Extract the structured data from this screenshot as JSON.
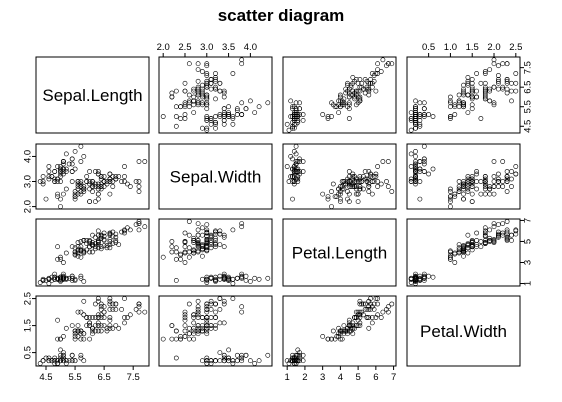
{
  "chart_data": {
    "type": "scatter",
    "title": "scatter diagram",
    "variables": [
      "Sepal.Length",
      "Sepal.Width",
      "Petal.Length",
      "Petal.Width"
    ],
    "ranges": {
      "Sepal.Length": [
        4.3,
        7.9
      ],
      "Sepal.Width": [
        2.0,
        4.4
      ],
      "Petal.Length": [
        1.0,
        6.9
      ],
      "Petal.Width": [
        0.1,
        2.5
      ]
    },
    "ticks": {
      "Sepal.Length": {
        "values": [
          4.5,
          5.5,
          6.5,
          7.5
        ],
        "labels": [
          "4.5",
          "5.5",
          "6.5",
          "7.5"
        ]
      },
      "Sepal.Width": {
        "values": [
          2.0,
          2.5,
          3.0,
          3.5,
          4.0
        ],
        "labels": [
          "2.0",
          "2.5",
          "3.0",
          "3.5",
          "4.0"
        ]
      },
      "Petal.Length": {
        "values": [
          1,
          2,
          3,
          4,
          5,
          6,
          7
        ],
        "labels": [
          "1",
          "2",
          "3",
          "4",
          "5",
          "6",
          "7"
        ]
      },
      "Petal.Width": {
        "values": [
          0.5,
          1.0,
          1.5,
          2.0,
          2.5
        ],
        "labels": [
          "0.5",
          "1.0",
          "1.5",
          "2.0",
          "2.5"
        ]
      }
    },
    "side_ticks": {
      "Sepal.Length": {
        "values": [
          4.5,
          5.5,
          6.5,
          7.5
        ],
        "labels": [
          "4.5",
          "5.5",
          "6.5",
          "7.5"
        ]
      },
      "Sepal.Width": {
        "values": [
          2.0,
          3.0,
          4.0
        ],
        "labels": [
          "2.0",
          "3.0",
          "4.0"
        ]
      },
      "Petal.Length": {
        "values": [
          1,
          3,
          5,
          7
        ],
        "labels": [
          "1",
          "3",
          "5",
          "7"
        ]
      },
      "Petal.Width": {
        "values": [
          0.5,
          1.5,
          2.5
        ],
        "labels": [
          "0.5",
          "1.5",
          "2.5"
        ]
      }
    },
    "points": [
      [
        5.1,
        3.5,
        1.4,
        0.2
      ],
      [
        4.9,
        3.0,
        1.4,
        0.2
      ],
      [
        4.7,
        3.2,
        1.3,
        0.2
      ],
      [
        4.6,
        3.1,
        1.5,
        0.2
      ],
      [
        5.0,
        3.6,
        1.4,
        0.2
      ],
      [
        5.4,
        3.9,
        1.7,
        0.4
      ],
      [
        4.6,
        3.4,
        1.4,
        0.3
      ],
      [
        5.0,
        3.4,
        1.5,
        0.2
      ],
      [
        4.4,
        2.9,
        1.4,
        0.2
      ],
      [
        4.9,
        3.1,
        1.5,
        0.1
      ],
      [
        5.4,
        3.7,
        1.5,
        0.2
      ],
      [
        4.8,
        3.4,
        1.6,
        0.2
      ],
      [
        4.8,
        3.0,
        1.4,
        0.1
      ],
      [
        4.3,
        3.0,
        1.1,
        0.1
      ],
      [
        5.8,
        4.0,
        1.2,
        0.2
      ],
      [
        5.7,
        4.4,
        1.5,
        0.4
      ],
      [
        5.4,
        3.9,
        1.3,
        0.4
      ],
      [
        5.1,
        3.5,
        1.4,
        0.3
      ],
      [
        5.7,
        3.8,
        1.7,
        0.3
      ],
      [
        5.1,
        3.8,
        1.5,
        0.3
      ],
      [
        5.4,
        3.4,
        1.7,
        0.2
      ],
      [
        5.1,
        3.7,
        1.5,
        0.4
      ],
      [
        4.6,
        3.6,
        1.0,
        0.2
      ],
      [
        5.1,
        3.3,
        1.7,
        0.5
      ],
      [
        4.8,
        3.4,
        1.9,
        0.2
      ],
      [
        5.0,
        3.0,
        1.6,
        0.2
      ],
      [
        5.0,
        3.4,
        1.6,
        0.4
      ],
      [
        5.2,
        3.5,
        1.5,
        0.2
      ],
      [
        5.2,
        3.4,
        1.4,
        0.2
      ],
      [
        4.7,
        3.2,
        1.6,
        0.2
      ],
      [
        4.8,
        3.1,
        1.6,
        0.2
      ],
      [
        5.4,
        3.4,
        1.5,
        0.4
      ],
      [
        5.2,
        4.1,
        1.5,
        0.1
      ],
      [
        5.5,
        4.2,
        1.4,
        0.2
      ],
      [
        4.9,
        3.1,
        1.5,
        0.2
      ],
      [
        5.0,
        3.2,
        1.2,
        0.2
      ],
      [
        5.5,
        3.5,
        1.3,
        0.2
      ],
      [
        4.9,
        3.6,
        1.4,
        0.1
      ],
      [
        4.4,
        3.0,
        1.3,
        0.2
      ],
      [
        5.1,
        3.4,
        1.5,
        0.2
      ],
      [
        5.0,
        3.5,
        1.3,
        0.3
      ],
      [
        4.5,
        2.3,
        1.3,
        0.3
      ],
      [
        4.4,
        3.2,
        1.3,
        0.2
      ],
      [
        5.0,
        3.5,
        1.6,
        0.6
      ],
      [
        5.1,
        3.8,
        1.9,
        0.4
      ],
      [
        4.8,
        3.0,
        1.4,
        0.3
      ],
      [
        5.1,
        3.8,
        1.6,
        0.2
      ],
      [
        4.6,
        3.2,
        1.4,
        0.2
      ],
      [
        5.3,
        3.7,
        1.5,
        0.2
      ],
      [
        5.0,
        3.3,
        1.4,
        0.2
      ],
      [
        7.0,
        3.2,
        4.7,
        1.4
      ],
      [
        6.4,
        3.2,
        4.5,
        1.5
      ],
      [
        6.9,
        3.1,
        4.9,
        1.5
      ],
      [
        5.5,
        2.3,
        4.0,
        1.3
      ],
      [
        6.5,
        2.8,
        4.6,
        1.5
      ],
      [
        5.7,
        2.8,
        4.5,
        1.3
      ],
      [
        6.3,
        3.3,
        4.7,
        1.6
      ],
      [
        4.9,
        2.4,
        3.3,
        1.0
      ],
      [
        6.6,
        2.9,
        4.6,
        1.3
      ],
      [
        5.2,
        2.7,
        3.9,
        1.4
      ],
      [
        5.0,
        2.0,
        3.5,
        1.0
      ],
      [
        5.9,
        3.0,
        4.2,
        1.5
      ],
      [
        6.0,
        2.2,
        4.0,
        1.0
      ],
      [
        6.1,
        2.9,
        4.7,
        1.4
      ],
      [
        5.6,
        2.9,
        3.6,
        1.3
      ],
      [
        6.7,
        3.1,
        4.4,
        1.4
      ],
      [
        5.6,
        3.0,
        4.5,
        1.5
      ],
      [
        5.8,
        2.7,
        4.1,
        1.0
      ],
      [
        6.2,
        2.2,
        4.5,
        1.5
      ],
      [
        5.6,
        2.5,
        3.9,
        1.1
      ],
      [
        5.9,
        3.2,
        4.8,
        1.8
      ],
      [
        6.1,
        2.8,
        4.0,
        1.3
      ],
      [
        6.3,
        2.5,
        4.9,
        1.5
      ],
      [
        6.1,
        2.8,
        4.7,
        1.2
      ],
      [
        6.4,
        2.9,
        4.3,
        1.3
      ],
      [
        6.6,
        3.0,
        4.4,
        1.4
      ],
      [
        6.8,
        2.8,
        4.8,
        1.4
      ],
      [
        6.7,
        3.0,
        5.0,
        1.7
      ],
      [
        6.0,
        2.9,
        4.5,
        1.5
      ],
      [
        5.7,
        2.6,
        3.5,
        1.0
      ],
      [
        5.5,
        2.4,
        3.8,
        1.1
      ],
      [
        5.5,
        2.4,
        3.7,
        1.0
      ],
      [
        5.8,
        2.7,
        3.9,
        1.2
      ],
      [
        6.0,
        2.7,
        5.1,
        1.6
      ],
      [
        5.4,
        3.0,
        4.5,
        1.5
      ],
      [
        6.0,
        3.4,
        4.5,
        1.6
      ],
      [
        6.7,
        3.1,
        4.7,
        1.5
      ],
      [
        6.3,
        2.3,
        4.4,
        1.3
      ],
      [
        5.6,
        3.0,
        4.1,
        1.3
      ],
      [
        5.5,
        2.5,
        4.0,
        1.3
      ],
      [
        5.5,
        2.6,
        4.4,
        1.2
      ],
      [
        6.1,
        3.0,
        4.6,
        1.4
      ],
      [
        5.8,
        2.6,
        4.0,
        1.2
      ],
      [
        5.0,
        2.3,
        3.3,
        1.0
      ],
      [
        5.6,
        2.7,
        4.2,
        1.3
      ],
      [
        5.7,
        3.0,
        4.2,
        1.2
      ],
      [
        5.7,
        2.9,
        4.2,
        1.3
      ],
      [
        6.2,
        2.9,
        4.3,
        1.3
      ],
      [
        5.1,
        2.5,
        3.0,
        1.1
      ],
      [
        5.7,
        2.8,
        4.1,
        1.3
      ],
      [
        6.3,
        3.3,
        6.0,
        2.5
      ],
      [
        5.8,
        2.7,
        5.1,
        1.9
      ],
      [
        7.1,
        3.0,
        5.9,
        2.1
      ],
      [
        6.3,
        2.9,
        5.6,
        1.8
      ],
      [
        6.5,
        3.0,
        5.8,
        2.2
      ],
      [
        7.6,
        3.0,
        6.6,
        2.1
      ],
      [
        4.9,
        2.5,
        4.5,
        1.7
      ],
      [
        7.3,
        2.9,
        6.3,
        1.8
      ],
      [
        6.7,
        2.5,
        5.8,
        1.8
      ],
      [
        7.2,
        3.6,
        6.1,
        2.5
      ],
      [
        6.5,
        3.2,
        5.1,
        2.0
      ],
      [
        6.4,
        2.7,
        5.3,
        1.9
      ],
      [
        6.8,
        3.0,
        5.5,
        2.1
      ],
      [
        5.7,
        2.5,
        5.0,
        2.0
      ],
      [
        5.8,
        2.8,
        5.1,
        2.4
      ],
      [
        6.4,
        3.2,
        5.3,
        2.3
      ],
      [
        6.5,
        3.0,
        5.5,
        1.8
      ],
      [
        7.7,
        3.8,
        6.7,
        2.2
      ],
      [
        7.7,
        2.6,
        6.9,
        2.3
      ],
      [
        6.0,
        2.2,
        5.0,
        1.5
      ],
      [
        6.9,
        3.2,
        5.7,
        2.3
      ],
      [
        5.6,
        2.8,
        4.9,
        2.0
      ],
      [
        7.7,
        2.8,
        6.7,
        2.0
      ],
      [
        6.3,
        2.7,
        4.9,
        1.8
      ],
      [
        6.7,
        3.3,
        5.7,
        2.1
      ],
      [
        7.2,
        3.2,
        6.0,
        1.8
      ],
      [
        6.2,
        2.8,
        4.8,
        1.8
      ],
      [
        6.1,
        3.0,
        4.9,
        1.8
      ],
      [
        6.4,
        2.8,
        5.6,
        2.1
      ],
      [
        7.2,
        3.0,
        5.8,
        1.6
      ],
      [
        7.4,
        2.8,
        6.1,
        1.9
      ],
      [
        7.9,
        3.8,
        6.4,
        2.0
      ],
      [
        6.4,
        2.8,
        5.6,
        2.2
      ],
      [
        6.3,
        2.8,
        5.1,
        1.5
      ],
      [
        6.1,
        2.6,
        5.6,
        1.4
      ],
      [
        7.7,
        3.0,
        6.1,
        2.3
      ],
      [
        6.3,
        3.4,
        5.6,
        2.4
      ],
      [
        6.4,
        3.1,
        5.5,
        1.8
      ],
      [
        6.0,
        3.0,
        4.8,
        1.8
      ],
      [
        6.9,
        3.1,
        5.4,
        2.1
      ],
      [
        6.7,
        3.1,
        5.6,
        2.4
      ],
      [
        6.9,
        3.1,
        5.1,
        2.3
      ],
      [
        5.8,
        2.7,
        5.1,
        1.9
      ],
      [
        6.8,
        3.2,
        5.9,
        2.3
      ],
      [
        6.7,
        3.3,
        5.7,
        2.5
      ],
      [
        6.7,
        3.0,
        5.2,
        2.3
      ],
      [
        6.3,
        2.5,
        5.0,
        1.9
      ],
      [
        6.5,
        3.0,
        5.2,
        2.0
      ],
      [
        6.2,
        3.4,
        5.4,
        2.3
      ],
      [
        5.9,
        3.0,
        5.1,
        1.8
      ]
    ]
  }
}
